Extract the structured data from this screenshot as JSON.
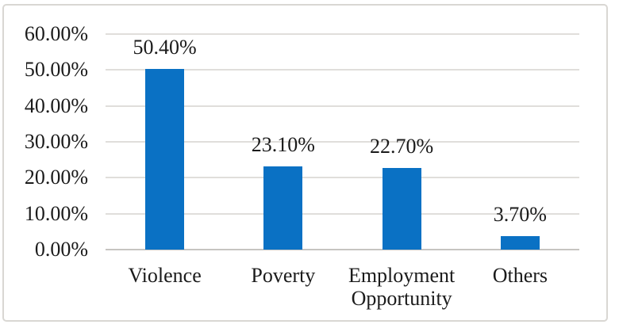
{
  "chart_data": {
    "type": "bar",
    "title": "",
    "xlabel": "",
    "ylabel": "",
    "categories": [
      "Violence",
      "Poverty",
      "Employment Opportunity",
      "Others"
    ],
    "values": [
      50.4,
      23.1,
      22.7,
      3.7
    ],
    "value_labels": [
      "50.40%",
      "23.10%",
      "22.70%",
      "3.70%"
    ],
    "y_tick_labels": [
      "0.00%",
      "10.00%",
      "20.00%",
      "30.00%",
      "40.00%",
      "50.00%",
      "60.00%"
    ],
    "y_tick_values": [
      0,
      10,
      20,
      30,
      40,
      50,
      60
    ],
    "ylim": [
      0,
      60
    ],
    "grid": true,
    "legend_position": "none",
    "colors": {
      "bar": "#0a71c4",
      "gridline": "#e0dedb",
      "axis_line": "#c6c4c1",
      "text": "#1b1b1b",
      "figure_border": "#d9d7d3",
      "background": "#ffffff"
    }
  }
}
